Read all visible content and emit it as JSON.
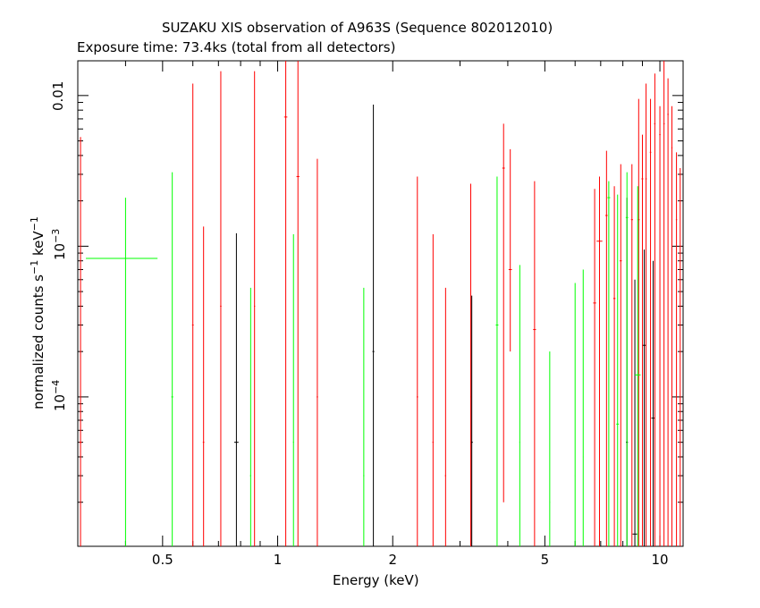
{
  "chart_data": {
    "type": "scatter",
    "title": "SUZAKU XIS observation of A963S (Sequence 802012010)",
    "subtitle": "Exposure time: 73.4ks (total from all detectors)",
    "xlabel": "Energy (keV)",
    "ylabel_parts": [
      "normalized counts s",
      "−1",
      " keV",
      "−1"
    ],
    "x_scale": "log",
    "y_scale": "log",
    "xlim": [
      0.3,
      11.5
    ],
    "ylim": [
      1.02e-05,
      0.017
    ],
    "x_ticks": [
      {
        "value": 0.5,
        "label": "0.5"
      },
      {
        "value": 1,
        "label": "1"
      },
      {
        "value": 2,
        "label": "2"
      },
      {
        "value": 5,
        "label": "5"
      },
      {
        "value": 10,
        "label": "10"
      }
    ],
    "y_ticks": [
      {
        "value": 0.0001,
        "label": "10",
        "exp": "−4"
      },
      {
        "value": 0.001,
        "label": "10",
        "exp": "−3"
      },
      {
        "value": 0.01,
        "label": "0.01",
        "exp": ""
      }
    ],
    "series_colors": {
      "black": "#000000",
      "red": "#ff0000",
      "green": "#00ff00"
    },
    "series": [
      {
        "color_key": "black",
        "points": [
          {
            "x": 0.78,
            "xerr": 0.01,
            "y": 5e-05,
            "ylo": 1.02e-05,
            "yhi": 0.00122
          },
          {
            "x": 1.78,
            "xerr": 0.01,
            "y": 0.0002,
            "ylo": 1.02e-05,
            "yhi": 0.0087
          },
          {
            "x": 3.22,
            "xerr": 0.02,
            "y": 5e-05,
            "ylo": 1.02e-05,
            "yhi": 0.00047
          },
          {
            "x": 8.2,
            "xerr": 0.05,
            "y": 5e-05,
            "ylo": 1.02e-05,
            "yhi": 0.0021
          },
          {
            "x": 8.6,
            "xerr": 0.12,
            "y": 1.23e-05,
            "ylo": 1.02e-05,
            "yhi": 0.0006
          },
          {
            "x": 9.1,
            "xerr": 0.1,
            "y": 0.00022,
            "ylo": 1.02e-05,
            "yhi": 0.00095
          },
          {
            "x": 9.6,
            "xerr": 0.1,
            "y": 7.23e-05,
            "ylo": 1.02e-05,
            "yhi": 0.0008
          }
        ]
      },
      {
        "color_key": "red",
        "points": [
          {
            "x": 0.305,
            "xerr": 0.002,
            "y": 5e-05,
            "ylo": 1.02e-05,
            "yhi": 0.0053
          },
          {
            "x": 0.6,
            "xerr": 0.003,
            "y": 0.0003,
            "ylo": 1.02e-05,
            "yhi": 0.012
          },
          {
            "x": 0.64,
            "xerr": 0.003,
            "y": 5e-05,
            "ylo": 1.02e-05,
            "yhi": 0.00135
          },
          {
            "x": 0.71,
            "xerr": 0.003,
            "y": 0.0004,
            "ylo": 1.02e-05,
            "yhi": 0.0145
          },
          {
            "x": 0.87,
            "xerr": 0.003,
            "y": 0.0004,
            "ylo": 1.02e-05,
            "yhi": 0.0145
          },
          {
            "x": 1.05,
            "xerr": 0.01,
            "y": 0.0072,
            "ylo": 1.02e-05,
            "yhi": 0.017
          },
          {
            "x": 1.13,
            "xerr": 0.01,
            "y": 0.0029,
            "ylo": 1.02e-05,
            "yhi": 0.017
          },
          {
            "x": 1.27,
            "xerr": 0.005,
            "y": 0.0001,
            "ylo": 1.02e-05,
            "yhi": 0.0038
          },
          {
            "x": 2.32,
            "xerr": 0.01,
            "y": 0.0001,
            "ylo": 1.02e-05,
            "yhi": 0.0029
          },
          {
            "x": 2.55,
            "xerr": 0.01,
            "y": 5e-05,
            "ylo": 1.02e-05,
            "yhi": 0.0012
          },
          {
            "x": 2.75,
            "xerr": 0.01,
            "y": 3e-05,
            "ylo": 1.02e-05,
            "yhi": 0.00053
          },
          {
            "x": 3.2,
            "xerr": 0.01,
            "y": 0.0001,
            "ylo": 1.02e-05,
            "yhi": 0.0026
          },
          {
            "x": 3.9,
            "xerr": 0.03,
            "y": 0.0033,
            "ylo": 2e-05,
            "yhi": 0.0065
          },
          {
            "x": 4.06,
            "xerr": 0.04,
            "y": 0.0007,
            "ylo": 0.0002,
            "yhi": 0.0044
          },
          {
            "x": 4.7,
            "xerr": 0.04,
            "y": 0.00028,
            "ylo": 1.02e-05,
            "yhi": 0.0027
          },
          {
            "x": 6.75,
            "xerr": 0.06,
            "y": 0.00042,
            "ylo": 1.02e-05,
            "yhi": 0.0024
          },
          {
            "x": 6.95,
            "xerr": 0.12,
            "y": 0.00108,
            "ylo": 1.02e-05,
            "yhi": 0.0029
          },
          {
            "x": 7.25,
            "xerr": 0.05,
            "y": 0.0016,
            "ylo": 1.02e-05,
            "yhi": 0.0043
          },
          {
            "x": 7.6,
            "xerr": 0.05,
            "y": 0.00045,
            "ylo": 1.02e-05,
            "yhi": 0.0025
          },
          {
            "x": 7.9,
            "xerr": 0.05,
            "y": 0.0008,
            "ylo": 1.02e-05,
            "yhi": 0.0035
          },
          {
            "x": 8.45,
            "xerr": 0.05,
            "y": 0.0015,
            "ylo": 1.02e-05,
            "yhi": 0.0035
          },
          {
            "x": 8.8,
            "xerr": 0.05,
            "y": 0.0015,
            "ylo": 1.02e-05,
            "yhi": 0.0095
          },
          {
            "x": 9.0,
            "xerr": 0.05,
            "y": 0.0028,
            "ylo": 1.02e-05,
            "yhi": 0.0055
          },
          {
            "x": 9.2,
            "xerr": 0.04,
            "y": 0.0028,
            "ylo": 1.02e-05,
            "yhi": 0.012
          },
          {
            "x": 9.45,
            "xerr": 0.04,
            "y": 0.0042,
            "ylo": 1.02e-05,
            "yhi": 0.0095
          },
          {
            "x": 9.7,
            "xerr": 0.04,
            "y": 0.0065,
            "ylo": 1.02e-05,
            "yhi": 0.014
          },
          {
            "x": 10.0,
            "xerr": 0.04,
            "y": 0.0055,
            "ylo": 1.02e-05,
            "yhi": 0.0085
          },
          {
            "x": 10.25,
            "xerr": 0.04,
            "y": 0.0065,
            "ylo": 1.02e-05,
            "yhi": 0.017
          },
          {
            "x": 10.5,
            "xerr": 0.04,
            "y": 0.0075,
            "ylo": 1.02e-05,
            "yhi": 0.013
          },
          {
            "x": 10.75,
            "xerr": 0.04,
            "y": 0.0045,
            "ylo": 1.02e-05,
            "yhi": 0.0085
          },
          {
            "x": 11.05,
            "xerr": 0.04,
            "y": 0.0015,
            "ylo": 1.02e-05,
            "yhi": 0.0042
          },
          {
            "x": 11.3,
            "xerr": 0.04,
            "y": 0.001,
            "ylo": 1.02e-05,
            "yhi": 0.0033
          }
        ]
      },
      {
        "color_key": "green",
        "points": [
          {
            "x": 0.4,
            "xerr": 0.085,
            "y": 0.00083,
            "ylo": 1.02e-05,
            "yhi": 0.0021
          },
          {
            "x": 0.53,
            "xerr": 0.003,
            "y": 0.0001,
            "ylo": 1.02e-05,
            "yhi": 0.0031
          },
          {
            "x": 0.85,
            "xerr": 0.003,
            "y": 3e-05,
            "ylo": 1.02e-05,
            "yhi": 0.00053
          },
          {
            "x": 1.1,
            "xerr": 0.003,
            "y": 5e-05,
            "ylo": 1.02e-05,
            "yhi": 0.0012
          },
          {
            "x": 1.68,
            "xerr": 0.005,
            "y": 3e-05,
            "ylo": 1.02e-05,
            "yhi": 0.00053
          },
          {
            "x": 3.75,
            "xerr": 0.03,
            "y": 0.0003,
            "ylo": 1.02e-05,
            "yhi": 0.0029
          },
          {
            "x": 4.3,
            "xerr": 0.01,
            "y": 5e-05,
            "ylo": 1.02e-05,
            "yhi": 0.00075
          },
          {
            "x": 5.15,
            "xerr": 0.01,
            "y": 2e-05,
            "ylo": 1.02e-05,
            "yhi": 0.0002
          },
          {
            "x": 6.0,
            "xerr": 0.01,
            "y": 3e-05,
            "ylo": 1.02e-05,
            "yhi": 0.00057
          },
          {
            "x": 6.3,
            "xerr": 0.01,
            "y": 4e-05,
            "ylo": 1.02e-05,
            "yhi": 0.0007
          },
          {
            "x": 7.35,
            "xerr": 0.06,
            "y": 0.0021,
            "ylo": 1.02e-05,
            "yhi": 0.0027
          },
          {
            "x": 7.75,
            "xerr": 0.06,
            "y": 6.6e-05,
            "ylo": 1.02e-05,
            "yhi": 0.0022
          },
          {
            "x": 8.2,
            "xerr": 0.06,
            "y": 0.00155,
            "ylo": 1.02e-05,
            "yhi": 0.0031
          },
          {
            "x": 8.75,
            "xerr": 0.15,
            "y": 0.00014,
            "ylo": 1.02e-05,
            "yhi": 0.0025
          }
        ]
      }
    ]
  }
}
